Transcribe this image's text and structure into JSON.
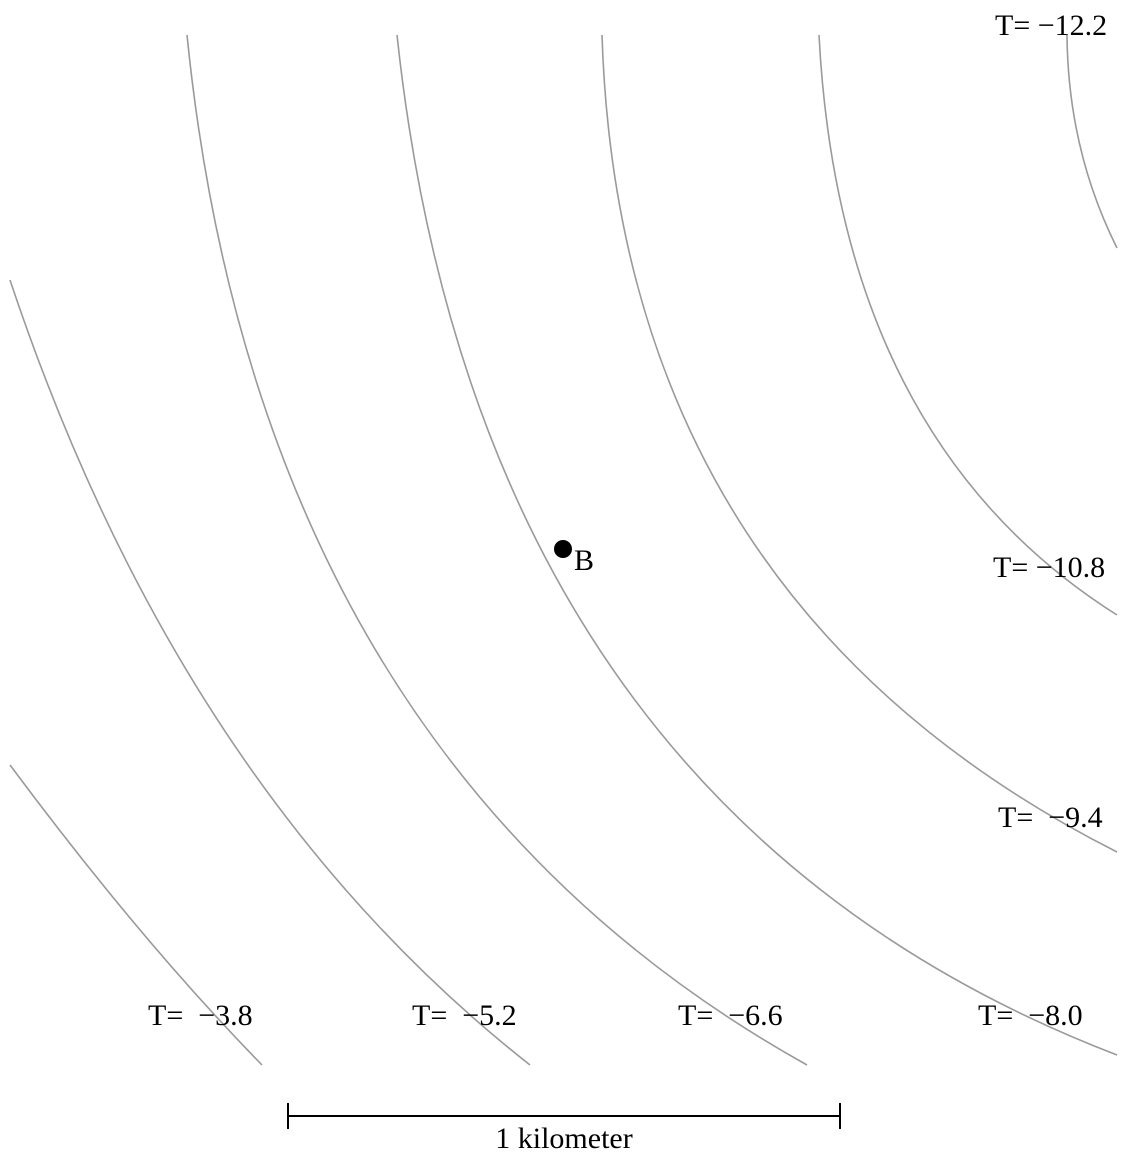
{
  "contours": [
    {
      "label": "T=  −3.8"
    },
    {
      "label": "T=  −5.2"
    },
    {
      "label": "T=  −6.6"
    },
    {
      "label": "T=  −8.0"
    },
    {
      "label": "T=  −9.4"
    },
    {
      "label": "T= −10.8"
    },
    {
      "label": "T= −12.2"
    }
  ],
  "point": {
    "label": "B"
  },
  "scale_bar": {
    "label": "1 kilometer"
  },
  "colors": {
    "contour": "#9a9a9a",
    "point": "#000000",
    "text": "#000000"
  }
}
